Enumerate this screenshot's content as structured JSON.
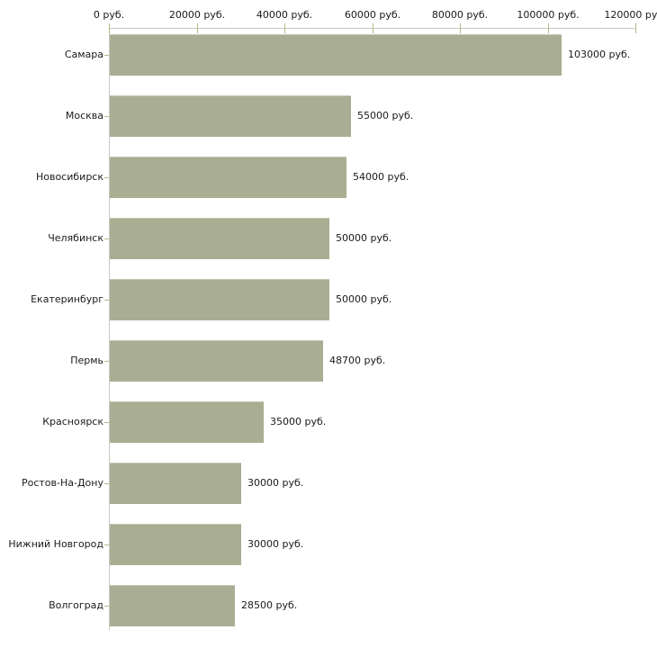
{
  "chart_data": {
    "type": "bar",
    "orientation": "horizontal",
    "title": "",
    "xlabel": "",
    "ylabel": "",
    "unit": "руб.",
    "xlim": [
      0,
      120000
    ],
    "grid": false,
    "legend": false,
    "categories": [
      "Самара",
      "Москва",
      "Новосибирск",
      "Челябинск",
      "Екатеринбург",
      "Пермь",
      "Красноярск",
      "Ростов-На-Дону",
      "Нижний Новгород",
      "Волгоград"
    ],
    "values": [
      103000,
      55000,
      54000,
      50000,
      50000,
      48700,
      35000,
      30000,
      30000,
      28500
    ],
    "value_labels": [
      "103000 руб.",
      "55000 руб.",
      "54000 руб.",
      "50000 руб.",
      "50000 руб.",
      "48700 руб.",
      "35000 руб.",
      "30000 руб.",
      "30000 руб.",
      "28500 руб."
    ],
    "x_ticks": [
      0,
      20000,
      40000,
      60000,
      80000,
      100000,
      120000
    ],
    "x_tick_labels": [
      "0 руб.",
      "20000 руб.",
      "40000 руб.",
      "60000 руб.",
      "80000 руб.",
      "100000 руб.",
      "120000 руб."
    ]
  },
  "colors": {
    "background": "#ffffff",
    "bar_fill": "#a9ae93",
    "bar_edge": "#c3c7b2",
    "axis_line": "#c9c9c3",
    "tick_mark": "#b8b88c",
    "label_text": "#1a1a1a"
  }
}
